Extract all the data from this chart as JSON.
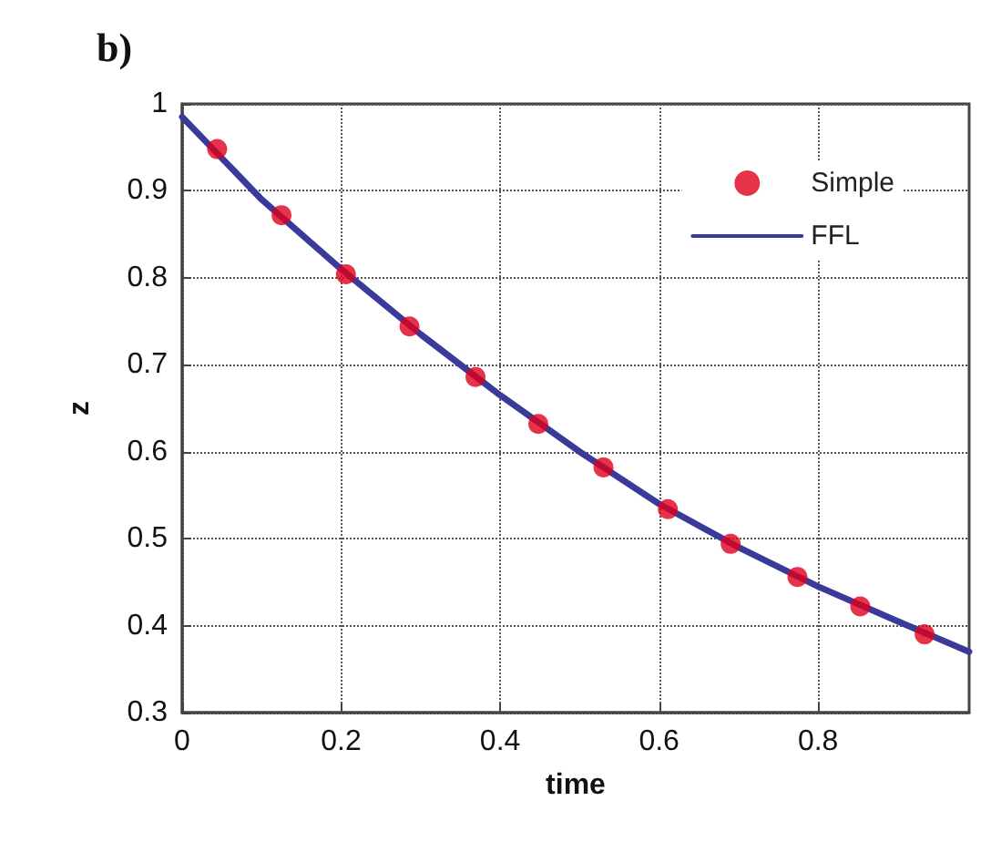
{
  "chart_data": {
    "type": "line",
    "title": "b)",
    "xlabel": "time",
    "ylabel": "z",
    "xlim": [
      0,
      0.99
    ],
    "xticks": [
      0,
      0.2,
      0.4,
      0.6,
      0.8
    ],
    "ylim": [
      0.3,
      1
    ],
    "yticks": [
      0.3,
      0.4,
      0.5,
      0.6,
      0.7,
      0.8,
      0.9,
      1
    ],
    "grid": true,
    "legend": "top right",
    "series": [
      {
        "name": "Simple",
        "type": "scatter",
        "marker": "circle",
        "color": "#e0001b",
        "x": [
          0.044,
          0.125,
          0.206,
          0.286,
          0.369,
          0.448,
          0.53,
          0.611,
          0.69,
          0.774,
          0.853,
          0.934
        ],
        "values": [
          0.948,
          0.872,
          0.804,
          0.744,
          0.686,
          0.632,
          0.582,
          0.534,
          0.494,
          0.456,
          0.422,
          0.39
        ]
      },
      {
        "name": "FFL",
        "marker": "none",
        "line_style": "solid",
        "color": "#3a3a9a",
        "x": [
          0,
          0.1,
          0.2,
          0.3,
          0.4,
          0.5,
          0.6,
          0.7,
          0.8,
          0.9,
          0.99
        ],
        "values": [
          0.985,
          0.89,
          0.81,
          0.735,
          0.665,
          0.6,
          0.54,
          0.49,
          0.445,
          0.405,
          0.37
        ]
      }
    ]
  }
}
